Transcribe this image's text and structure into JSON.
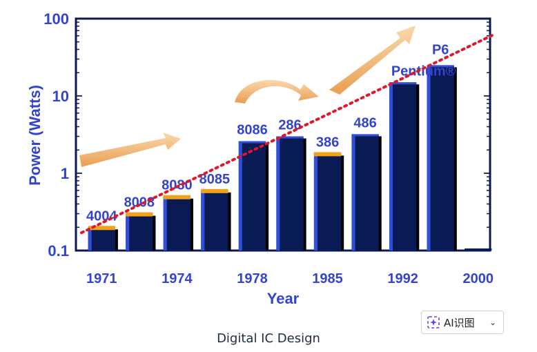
{
  "chart_data": {
    "type": "bar",
    "ylabel": "Power (Watts)",
    "xlabel": "Year",
    "yscale": "log",
    "ylim": [
      0.1,
      100
    ],
    "yticks": [
      "0.1",
      "1",
      "10",
      "100"
    ],
    "xticks": [
      "1971",
      "1974",
      "1978",
      "1985",
      "1992",
      "2000"
    ],
    "bars": [
      {
        "label": "4004",
        "value": 0.2,
        "cap": true
      },
      {
        "label": "8008",
        "value": 0.3,
        "cap": true
      },
      {
        "label": "8080",
        "value": 0.5,
        "cap": true
      },
      {
        "label": "8085",
        "value": 0.6,
        "cap": true
      },
      {
        "label": "8086",
        "value": 2.6,
        "cap": false
      },
      {
        "label": "286",
        "value": 3.0,
        "cap": false
      },
      {
        "label": "386",
        "value": 1.8,
        "cap": true
      },
      {
        "label": "486",
        "value": 3.2,
        "cap": false
      },
      {
        "label": "Pentium®",
        "value": 15,
        "cap": false
      },
      {
        "label": "P6",
        "value": 25,
        "cap": false
      }
    ],
    "trend_start": 0.17,
    "trend_end": 62,
    "colors": {
      "axis_text": "#3344cc",
      "bar_dark": "#0a1a55",
      "bar_light": "#2f4fd8",
      "cap": "#f2a21a",
      "trend": "#e0162b",
      "arrow": "#f4b97a"
    }
  },
  "caption": "Digital IC Design",
  "ai_button": {
    "label": "AI识图",
    "chevron": "⌄"
  }
}
